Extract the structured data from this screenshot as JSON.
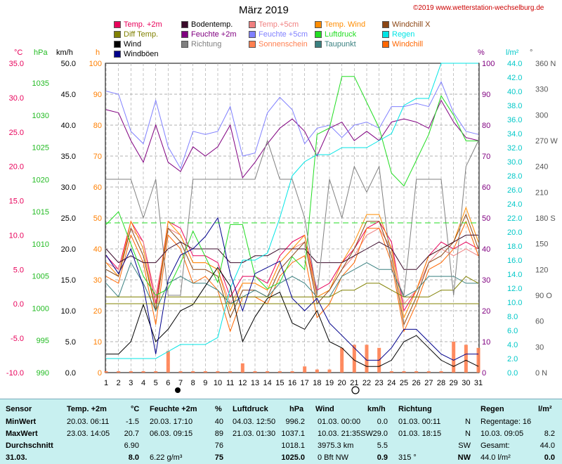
{
  "header": {
    "title": "März 2019",
    "copyright": "©2019 www.wetterstation-wechselburg.de"
  },
  "legend": [
    {
      "label": "Temp. +2m",
      "color": "#e8005a"
    },
    {
      "label": "Bodentemp.",
      "color": "#3a0a2a"
    },
    {
      "label": "Temp.+5cm",
      "color": "#f08080"
    },
    {
      "label": "Temp. Wind",
      "color": "#ff8c00"
    },
    {
      "label": "Windchill X",
      "color": "#8b4513"
    },
    {
      "label": "Diff Temp.",
      "color": "#808000"
    },
    {
      "label": "Feuchte +2m",
      "color": "#800080"
    },
    {
      "label": "Feuchte +5cm",
      "color": "#8080ff"
    },
    {
      "label": "Luftdruck",
      "color": "#22dd22"
    },
    {
      "label": "Regen",
      "color": "#00e5e5"
    },
    {
      "label": "Wind",
      "color": "#000000"
    },
    {
      "label": "Richtung",
      "color": "#808080"
    },
    {
      "label": "Sonnenschein",
      "color": "#ff7f50"
    },
    {
      "label": "Taupunkt",
      "color": "#3a8080"
    },
    {
      "label": "Windchill",
      "color": "#ff6600"
    },
    {
      "label": "Windböen",
      "color": "#00008b"
    }
  ],
  "chart_data": {
    "type": "line",
    "x": [
      1,
      2,
      3,
      4,
      5,
      6,
      7,
      8,
      9,
      10,
      11,
      12,
      13,
      14,
      15,
      16,
      17,
      18,
      19,
      20,
      21,
      22,
      23,
      24,
      25,
      26,
      27,
      28,
      29,
      30,
      31
    ],
    "axes": {
      "temp": {
        "label": "°C",
        "ticks": [
          "35.0",
          "30.0",
          "25.0",
          "20.0",
          "15.0",
          "10.0",
          "5.0",
          "0.0",
          "-5.0",
          "-10.0"
        ],
        "range": [
          -10,
          35
        ]
      },
      "pressure": {
        "label": "hPa",
        "ticks": [
          "1035",
          "1030",
          "1025",
          "1020",
          "1015",
          "1010",
          "1005",
          "1000",
          "995",
          "990"
        ],
        "range": [
          990,
          1038
        ]
      },
      "wind": {
        "label": "km/h",
        "ticks": [
          "50.0",
          "45.0",
          "40.0",
          "35.0",
          "30.0",
          "25.0",
          "20.0",
          "15.0",
          "10.0",
          "5.0",
          "0.0"
        ],
        "range": [
          0,
          50
        ]
      },
      "sun": {
        "label": "h",
        "ticks": [
          "100",
          "90",
          "80",
          "70",
          "60",
          "50",
          "40",
          "30",
          "20",
          "10",
          "0"
        ],
        "range": [
          0,
          100
        ]
      },
      "humidity": {
        "label": "%",
        "ticks": [
          "100",
          "90",
          "80",
          "70",
          "60",
          "50",
          "40",
          "30",
          "20",
          "10",
          "0"
        ],
        "range": [
          0,
          100
        ]
      },
      "rain": {
        "label": "l/m²",
        "ticks": [
          "44.0",
          "42.0",
          "40.0",
          "38.0",
          "36.0",
          "34.0",
          "32.0",
          "30.0",
          "28.0",
          "26.0",
          "24.0",
          "22.0",
          "20.0",
          "18.0",
          "16.0",
          "14.0",
          "12.0",
          "10.0",
          "8.0",
          "6.0",
          "4.0",
          "2.0",
          "0.0"
        ],
        "range": [
          0,
          44
        ]
      },
      "direction": {
        "label": "°",
        "ticks": [
          "360 N",
          "330",
          "300",
          "270 W",
          "240",
          "210",
          "180 S",
          "150",
          "120",
          "90 O",
          "60",
          "30",
          "0 N"
        ],
        "range": [
          0,
          360
        ]
      }
    },
    "series": [
      {
        "name": "Temp. +2m",
        "color": "#e8005a",
        "axis": "temp",
        "values": [
          7,
          5,
          12,
          9,
          0,
          12,
          11,
          7,
          7,
          6,
          1,
          4,
          4,
          3,
          7,
          9,
          10,
          2,
          3,
          6,
          8,
          11,
          12,
          9,
          -1,
          2,
          7,
          9,
          8,
          9,
          8
        ]
      },
      {
        "name": "Temp.+5cm",
        "color": "#f08080",
        "axis": "temp",
        "values": [
          6,
          5,
          11,
          9,
          1,
          11,
          10,
          6,
          6,
          5,
          0,
          3,
          3,
          2,
          6,
          8,
          9,
          1,
          2,
          5,
          7,
          10,
          11,
          8,
          0,
          2,
          6,
          8,
          7,
          8,
          7
        ]
      },
      {
        "name": "Temp. Wind",
        "color": "#ff8c00",
        "axis": "temp",
        "values": [
          6,
          4,
          12,
          8,
          -1,
          12,
          10,
          6,
          6,
          5,
          -1,
          3,
          3,
          2,
          6,
          8,
          10,
          1,
          2,
          6,
          9,
          13,
          13,
          8,
          -2,
          2,
          7,
          8,
          9,
          14,
          9
        ]
      },
      {
        "name": "Windchill X",
        "color": "#8b4513",
        "axis": "temp",
        "values": [
          5,
          4,
          11,
          7,
          -1,
          11,
          9,
          5,
          5,
          4,
          -2,
          2,
          2,
          1,
          5,
          7,
          9,
          0,
          2,
          5,
          8,
          12,
          12,
          7,
          -3,
          1,
          6,
          7,
          9,
          13,
          8
        ]
      },
      {
        "name": "Windchill",
        "color": "#ff6600",
        "axis": "temp",
        "values": [
          4,
          3,
          10,
          6,
          -3,
          10,
          8,
          3,
          4,
          2,
          -4,
          1,
          1,
          0,
          4,
          6,
          7,
          -2,
          0,
          4,
          6,
          11,
          11,
          6,
          -4,
          0,
          5,
          6,
          8,
          12,
          7
        ]
      },
      {
        "name": "Bodentemp.",
        "color": "#3a0a2a",
        "axis": "temp",
        "values": [
          8,
          6,
          7,
          6,
          6,
          8,
          9,
          8,
          8,
          8,
          6,
          6,
          7,
          7,
          8,
          8,
          8,
          6,
          6,
          6,
          7,
          8,
          9,
          8,
          5,
          5,
          7,
          8,
          9,
          10,
          10
        ]
      },
      {
        "name": "Taupunkt",
        "color": "#3a8080",
        "axis": "temp",
        "values": [
          3,
          1,
          6,
          3,
          -1,
          3,
          4,
          3,
          3,
          2,
          0,
          1,
          2,
          1,
          3,
          4,
          3,
          1,
          1,
          4,
          5,
          6,
          5,
          5,
          1,
          2,
          4,
          4,
          4,
          3,
          3
        ]
      },
      {
        "name": "Diff Temp.",
        "color": "#808000",
        "axis": "temp",
        "values": [
          1,
          1,
          1,
          1,
          1,
          1,
          1,
          1,
          1,
          1,
          1,
          1,
          1,
          1,
          1,
          1,
          1,
          1,
          1,
          2,
          2,
          3,
          3,
          2,
          1,
          1,
          1,
          2,
          2,
          4,
          3
        ]
      },
      {
        "name": "Feuchte +2m",
        "color": "#800080",
        "axis": "humidity",
        "values": [
          85,
          84,
          75,
          68,
          80,
          68,
          65,
          73,
          70,
          73,
          80,
          63,
          68,
          74,
          79,
          82,
          78,
          70,
          79,
          81,
          75,
          78,
          75,
          81,
          82,
          81,
          79,
          88,
          81,
          76,
          75
        ]
      },
      {
        "name": "Feuchte +5cm",
        "color": "#8080ff",
        "axis": "humidity",
        "values": [
          91,
          90,
          78,
          74,
          88,
          73,
          66,
          78,
          77,
          78,
          86,
          70,
          71,
          84,
          89,
          85,
          74,
          79,
          80,
          76,
          80,
          81,
          79,
          86,
          86,
          87,
          86,
          94,
          84,
          78,
          77
        ]
      },
      {
        "name": "Luftdruck",
        "color": "#22dd22",
        "axis": "pressure",
        "values": [
          1013,
          1015,
          1010,
          1005,
          1002,
          1003,
          1007,
          1012,
          1008,
          1004,
          1013,
          1013,
          1005,
          1003,
          1004,
          1008,
          1006,
          1027,
          1028,
          1036,
          1036,
          1032,
          1028,
          1021,
          1019,
          1023,
          1027,
          1033,
          1030,
          1026,
          1026
        ]
      },
      {
        "name": "Regen",
        "color": "#00e5e5",
        "axis": "rain",
        "values": [
          2,
          2,
          2,
          2,
          2,
          3,
          4,
          4,
          4,
          5,
          12,
          16,
          16,
          17,
          22,
          28,
          30,
          31,
          31,
          32,
          32,
          32,
          33,
          34,
          38,
          39,
          39,
          44,
          44,
          44,
          44
        ]
      },
      {
        "name": "Wind",
        "color": "#000000",
        "axis": "wind",
        "values": [
          3,
          3,
          5,
          11,
          5,
          7,
          10,
          11,
          14,
          17,
          14,
          5,
          9,
          12,
          13,
          8,
          7,
          10,
          5,
          4,
          2,
          1,
          1,
          2,
          5,
          6,
          4,
          2,
          1,
          2,
          1
        ]
      },
      {
        "name": "Windböen",
        "color": "#00008b",
        "axis": "wind",
        "values": [
          19,
          16,
          20,
          14,
          3,
          15,
          19,
          20,
          22,
          25,
          16,
          10,
          16,
          17,
          18,
          12,
          10,
          12,
          8,
          6,
          4,
          2,
          2,
          4,
          7,
          7,
          5,
          3,
          2,
          3,
          3
        ]
      },
      {
        "name": "Richtung",
        "color": "#808080",
        "axis": "direction",
        "values": [
          225,
          225,
          225,
          180,
          225,
          90,
          90,
          225,
          225,
          225,
          225,
          225,
          225,
          270,
          225,
          225,
          180,
          90,
          225,
          180,
          240,
          210,
          240,
          120,
          90,
          225,
          225,
          225,
          90,
          240,
          270
        ]
      },
      {
        "name": "Sonnenschein",
        "color": "#ff7f50",
        "axis": "sun",
        "type": "bar",
        "values": [
          0,
          0,
          0,
          0,
          0,
          7,
          0,
          0,
          0,
          0,
          0,
          3,
          0,
          0,
          0,
          0,
          2,
          1,
          1,
          8,
          9,
          9,
          8,
          0,
          0,
          0,
          0,
          0,
          10,
          9,
          8
        ]
      }
    ]
  },
  "summary": {
    "headers": {
      "sensor": "Sensor",
      "temp": "Temp. +2m",
      "temp_unit": "°C",
      "hum": "Feuchte +2m",
      "hum_unit": "%",
      "press": "Luftdruck",
      "press_unit": "hPa",
      "wind": "Wind",
      "wind_unit": "km/h",
      "dir": "Richtung",
      "rain": "Regen",
      "rain_unit": "l/m²"
    },
    "rows": [
      {
        "label": "MinWert",
        "temp_time": "20.03.  06:11",
        "temp_val": "-1.5",
        "hum_time": "20.03.  17:10",
        "hum_val": "40",
        "press_time": "04.03.  12:50",
        "press_val": "996.2",
        "wind_time": "01.03.  00:00",
        "wind_val": "0.0",
        "dir_time": "01.03.  00:11",
        "dir_val": "N",
        "rain_label": "Regentage: 16",
        "rain_val": ""
      },
      {
        "label": "MaxWert",
        "temp_time": "23.03.  14:05",
        "temp_val": "20.7",
        "hum_time": "06.03.  09:15",
        "hum_val": "89",
        "press_time": "21.03.  01:30",
        "press_val": "1037.1",
        "wind_time": "10.03.  21:35SW",
        "wind_val": "29.0",
        "dir_time": "01.03.  18:15",
        "dir_val": "N",
        "rain_label": "10.03.  09:05",
        "rain_val": "8.2"
      },
      {
        "label": "Durchschnitt",
        "temp_time": "",
        "temp_val": "6.90",
        "hum_time": "",
        "hum_val": "76",
        "press_time": "",
        "press_val": "1018.1",
        "wind_time": "3975.3 km",
        "wind_val": "5.5",
        "dir_time": "",
        "dir_val": "SW",
        "rain_label": "Gesamt:",
        "rain_val": "44.0"
      },
      {
        "label": "31.03.",
        "temp_time": "",
        "temp_val": "8.0",
        "hum_time": "6.22 g/m³",
        "hum_val": "75",
        "press_time": "",
        "press_val": "1025.0",
        "wind_time": "0 Bft NW",
        "wind_val": "0.9",
        "dir_time": "315 °",
        "dir_val": "NW",
        "rain_label": "44.0 l/m²",
        "rain_val": "0.0"
      }
    ]
  }
}
